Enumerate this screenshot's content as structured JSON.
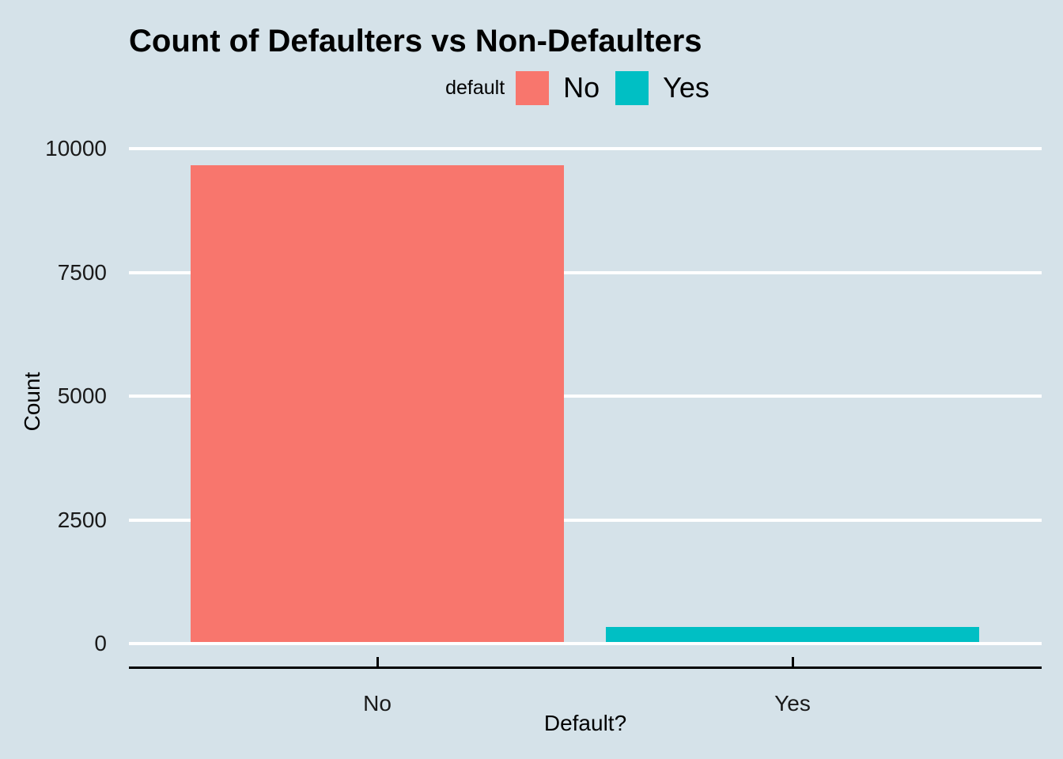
{
  "title": "Count of Defaulters vs Non-Defaulters",
  "legend": {
    "title": "default",
    "items": [
      {
        "label": "No",
        "color": "#F8766D"
      },
      {
        "label": "Yes",
        "color": "#00BFC4"
      }
    ],
    "position": "top-center"
  },
  "colors": {
    "background": "#D5E2E9",
    "gridline": "#FFFFFF",
    "axis": "#000000",
    "bar_no": "#F8766D",
    "bar_yes": "#00BFC4"
  },
  "chart_data": {
    "type": "bar",
    "title": "Count of Defaulters vs Non-Defaulters",
    "categories": [
      "No",
      "Yes"
    ],
    "values": [
      9667,
      333
    ],
    "bar_colors": [
      "#F8766D",
      "#00BFC4"
    ],
    "xlabel": "Default?",
    "ylabel": "Count",
    "ylim": [
      0,
      10000
    ],
    "yticks": [
      0,
      2500,
      5000,
      7500,
      10000
    ],
    "ytick_labels": [
      "0",
      "2500",
      "5000",
      "7500",
      "10000"
    ],
    "grid": "horizontal-major-white",
    "legend_title": "default",
    "legend_position": "top"
  }
}
